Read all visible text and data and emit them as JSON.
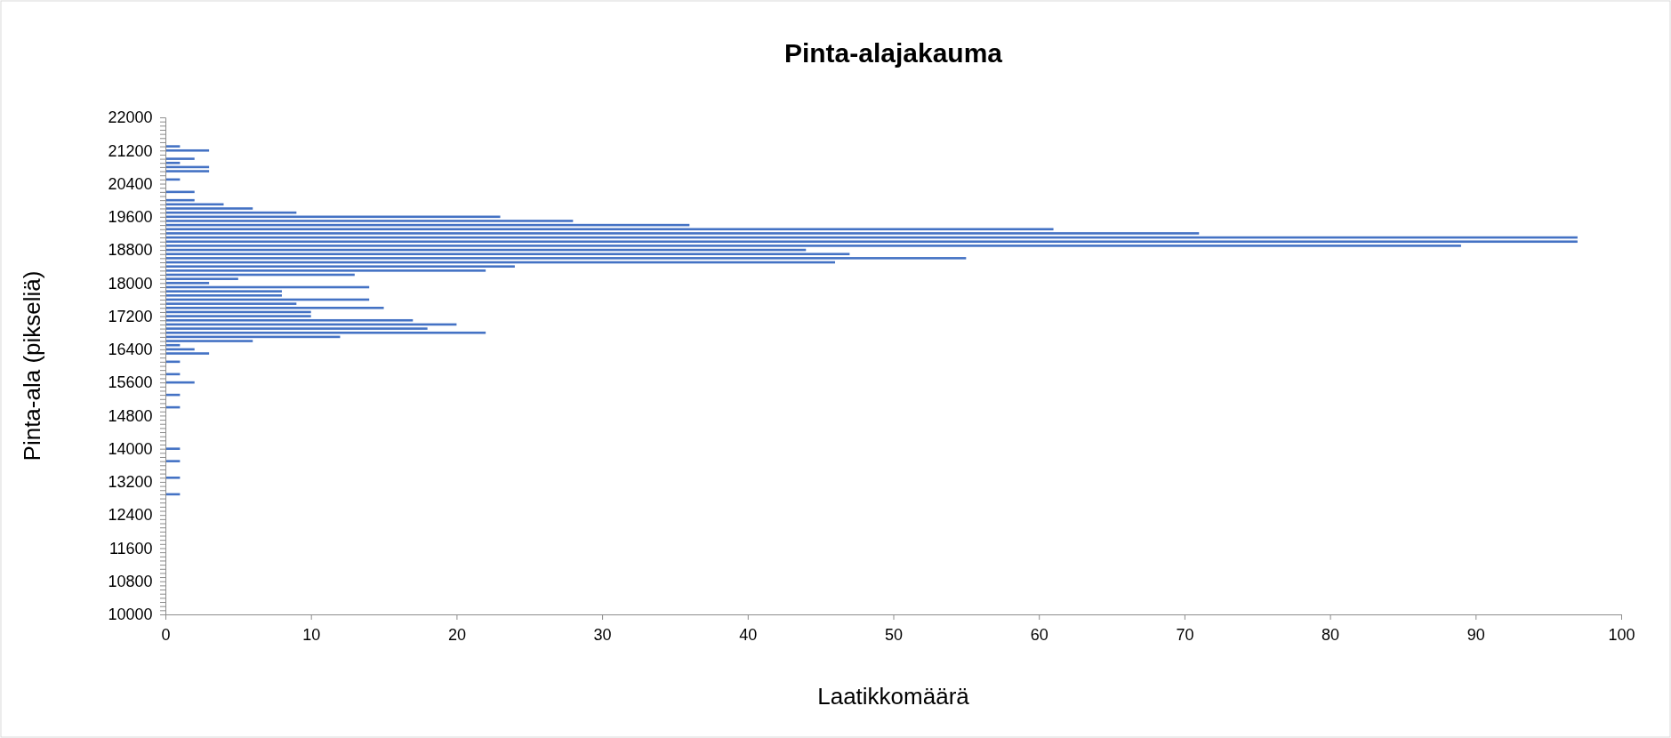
{
  "chart_data": {
    "type": "bar",
    "orientation": "horizontal",
    "title": "Pinta-alajakauma",
    "xlabel": "Laatikkomäärä",
    "ylabel": "Pinta-ala (pikseliä)",
    "categories": [
      "22000",
      null,
      null,
      null,
      null,
      null,
      null,
      null,
      "21200",
      null,
      null,
      null,
      null,
      null,
      null,
      null,
      "20400",
      null,
      null,
      null,
      null,
      null,
      null,
      null,
      "19600",
      null,
      null,
      null,
      null,
      null,
      null,
      null,
      "18800",
      null,
      null,
      null,
      null,
      null,
      null,
      null,
      "18000",
      null,
      null,
      null,
      null,
      null,
      null,
      null,
      "17200",
      null,
      null,
      null,
      null,
      null,
      null,
      null,
      "16400",
      null,
      null,
      null,
      null,
      null,
      null,
      null,
      "15600",
      null,
      null,
      null,
      null,
      null,
      null,
      null,
      "14800",
      null,
      null,
      null,
      null,
      null,
      null,
      null,
      "14000",
      null,
      null,
      null,
      null,
      null,
      null,
      null,
      "13200",
      null,
      null,
      null,
      null,
      null,
      null,
      null,
      "12400",
      null,
      null,
      null,
      null,
      null,
      null,
      null,
      "11600",
      null,
      null,
      null,
      null,
      null,
      null,
      null,
      "10800",
      null,
      null,
      null,
      null,
      null,
      null,
      null,
      "10000"
    ],
    "values": [
      0,
      0,
      0,
      0,
      0,
      0,
      0,
      1,
      3,
      0,
      2,
      1,
      3,
      3,
      0,
      1,
      0,
      0,
      2,
      0,
      2,
      4,
      6,
      9,
      23,
      28,
      36,
      61,
      71,
      97,
      97,
      89,
      44,
      47,
      55,
      46,
      24,
      22,
      13,
      5,
      3,
      14,
      8,
      8,
      14,
      9,
      15,
      10,
      10,
      17,
      20,
      18,
      22,
      12,
      6,
      1,
      2,
      3,
      0,
      1,
      0,
      0,
      1,
      0,
      2,
      0,
      0,
      1,
      0,
      0,
      1,
      0,
      0,
      0,
      0,
      0,
      0,
      0,
      0,
      0,
      1,
      0,
      0,
      1,
      0,
      0,
      0,
      1,
      0,
      0,
      0,
      1,
      0,
      0,
      0,
      0,
      0,
      0,
      0,
      0,
      0,
      0,
      0,
      0,
      0,
      0,
      0,
      0,
      0,
      0,
      0,
      0,
      0,
      0,
      0,
      0,
      0,
      0,
      0,
      0,
      0
    ],
    "color": "#4472c4",
    "xlim": [
      0,
      100
    ],
    "xticks": [
      0,
      10,
      20,
      30,
      40,
      50,
      60,
      70,
      80,
      90,
      100
    ],
    "grid": false
  }
}
